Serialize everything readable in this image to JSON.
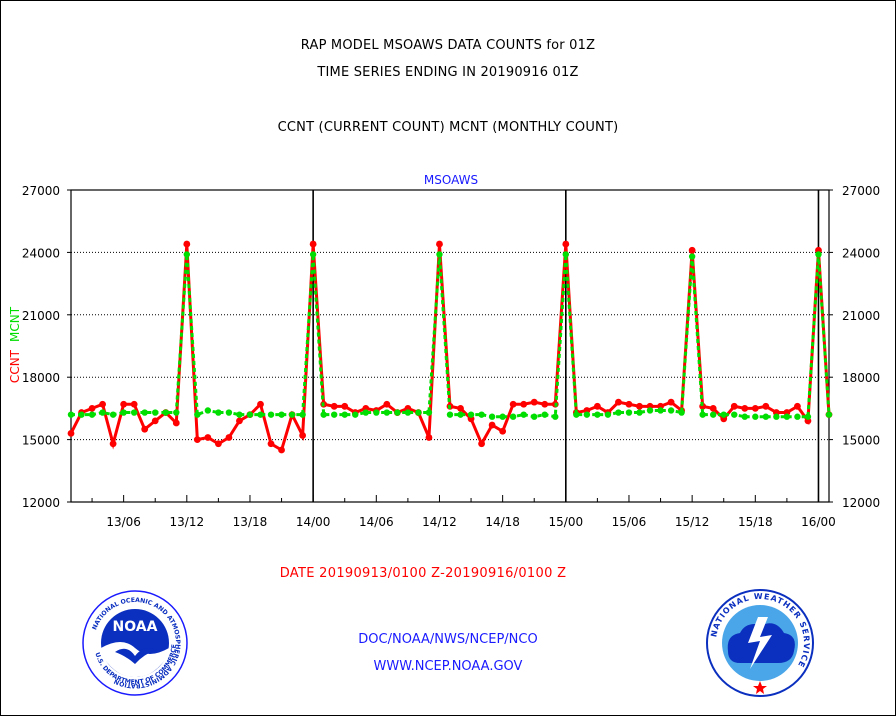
{
  "header": {
    "line1": "RAP MODEL MSOAWS DATA COUNTS for 01Z",
    "line2": "TIME SERIES ENDING IN 20190916 01Z",
    "line3": "CCNT (CURRENT COUNT) MCNT (MONTHLY COUNT)"
  },
  "footer": {
    "date_range": "DATE 20190913/0100 Z-20190916/0100 Z",
    "org": "DOC/NOAA/NWS/NCEP/NCO",
    "url": "WWW.NCEP.NOAA.GOV"
  },
  "logos": {
    "noaa_text": "NOAA",
    "noaa_ring": "NATIONAL OCEANIC AND ATMOSPHERIC ADMINISTRATION",
    "noaa_ring_bottom": "U.S. DEPARTMENT OF COMMERCE",
    "nws_ring": "NATIONAL WEATHER SERVICE"
  },
  "colors": {
    "ccnt": "#ff0000",
    "mcnt": "#00dd00",
    "title": "#1a1aff"
  },
  "chart_data": {
    "type": "line",
    "title": "MSOAWS",
    "ylabel_ccnt": "CCNT",
    "ylabel_mcnt": "MCNT",
    "ylim": [
      12000,
      27000
    ],
    "yticks": [
      12000,
      15000,
      18000,
      21000,
      24000,
      27000
    ],
    "ytick_labels": [
      "12000",
      "15000",
      "18000",
      "21000",
      "24000",
      "27000"
    ],
    "xlim": [
      1,
      73
    ],
    "xticks": [
      6,
      12,
      18,
      24,
      30,
      36,
      42,
      48,
      54,
      60,
      66,
      72
    ],
    "xtick_labels": [
      "13/06",
      "13/12",
      "13/18",
      "14/00",
      "14/06",
      "14/12",
      "14/18",
      "15/00",
      "15/06",
      "15/12",
      "15/18",
      "16/00"
    ],
    "day_boundaries": [
      24,
      48,
      72
    ],
    "grid": "horizontal",
    "series": [
      {
        "name": "CCNT",
        "x": [
          1,
          2,
          3,
          4,
          5,
          6,
          7,
          8,
          9,
          10,
          11,
          12,
          13,
          14,
          15,
          16,
          17,
          18,
          19,
          20,
          21,
          22,
          23,
          24,
          25,
          26,
          27,
          28,
          29,
          30,
          31,
          32,
          33,
          34,
          35,
          36,
          37,
          38,
          39,
          40,
          41,
          42,
          43,
          44,
          45,
          46,
          47,
          48,
          49,
          50,
          51,
          52,
          53,
          54,
          55,
          56,
          57,
          58,
          59,
          60,
          61,
          62,
          63,
          64,
          65,
          66,
          67,
          68,
          69,
          70,
          71,
          72,
          73
        ],
        "values": [
          15300,
          16300,
          16500,
          16700,
          14800,
          16700,
          16700,
          15500,
          15900,
          16300,
          15800,
          24400,
          15000,
          15100,
          14800,
          15100,
          15900,
          16200,
          16700,
          14800,
          14500,
          16200,
          15200,
          24400,
          16700,
          16600,
          16600,
          16300,
          16500,
          16400,
          16700,
          16300,
          16500,
          16300,
          15100,
          24400,
          16600,
          16500,
          16000,
          14800,
          15700,
          15400,
          16700,
          16700,
          16800,
          16700,
          16700,
          24400,
          16300,
          16400,
          16600,
          16300,
          16800,
          16700,
          16600,
          16600,
          16600,
          16800,
          16400,
          24100,
          16600,
          16500,
          16000,
          16600,
          16500,
          16500,
          16600,
          16300,
          16300,
          16600,
          15900,
          24100,
          16200
        ]
      },
      {
        "name": "MCNT",
        "x": [
          1,
          2,
          3,
          4,
          5,
          6,
          7,
          8,
          9,
          10,
          11,
          12,
          13,
          14,
          15,
          16,
          17,
          18,
          19,
          20,
          21,
          22,
          23,
          24,
          25,
          26,
          27,
          28,
          29,
          30,
          31,
          32,
          33,
          34,
          35,
          36,
          37,
          38,
          39,
          40,
          41,
          42,
          43,
          44,
          45,
          46,
          47,
          48,
          49,
          50,
          51,
          52,
          53,
          54,
          55,
          56,
          57,
          58,
          59,
          60,
          61,
          62,
          63,
          64,
          65,
          66,
          67,
          68,
          69,
          70,
          71,
          72,
          73
        ],
        "values": [
          16200,
          16200,
          16200,
          16300,
          16200,
          16300,
          16300,
          16300,
          16300,
          16300,
          16300,
          23900,
          16200,
          16400,
          16300,
          16300,
          16200,
          16200,
          16200,
          16200,
          16200,
          16200,
          16200,
          23900,
          16200,
          16200,
          16200,
          16200,
          16300,
          16300,
          16300,
          16300,
          16300,
          16300,
          16300,
          23900,
          16200,
          16200,
          16200,
          16200,
          16100,
          16100,
          16100,
          16200,
          16100,
          16200,
          16100,
          23900,
          16200,
          16200,
          16200,
          16200,
          16300,
          16300,
          16300,
          16400,
          16400,
          16400,
          16300,
          23800,
          16200,
          16200,
          16200,
          16200,
          16100,
          16100,
          16100,
          16100,
          16100,
          16100,
          16100,
          23900,
          16200
        ]
      }
    ]
  }
}
